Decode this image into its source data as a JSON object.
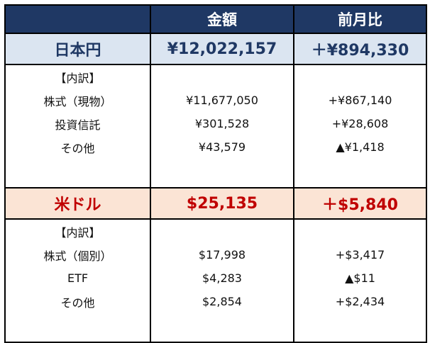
{
  "header": {
    "amount_label": "金額",
    "change_label": "前月比"
  },
  "jpy": {
    "name": "日本円",
    "amount": "¥12,022,157",
    "change": "＋¥894,330",
    "breakdown_label": "【内訳】",
    "rows": [
      {
        "name": "株式（現物）",
        "amount": "¥11,677,050",
        "change": "+¥867,140"
      },
      {
        "name": "投資信託",
        "amount": "¥301,528",
        "change": "+¥28,608"
      },
      {
        "name": "その他",
        "amount": "¥43,579",
        "change": "▲¥1,418"
      }
    ]
  },
  "usd": {
    "name": "米ドル",
    "amount": "$25,135",
    "change": "＋$5,840",
    "breakdown_label": "【内訳】",
    "rows": [
      {
        "name": "株式（個別）",
        "amount": "$17,998",
        "change": "+$3,417"
      },
      {
        "name": "ETF",
        "amount": "$4,283",
        "change": "▲$11"
      },
      {
        "name": "その他",
        "amount": "$2,854",
        "change": "+$2,434"
      }
    ]
  },
  "colors": {
    "header_bg": "#1f3864",
    "jpy_row_bg": "#dbe5f1",
    "jpy_text": "#1f3864",
    "usd_row_bg": "#fbe4d5",
    "usd_text": "#c00000"
  }
}
